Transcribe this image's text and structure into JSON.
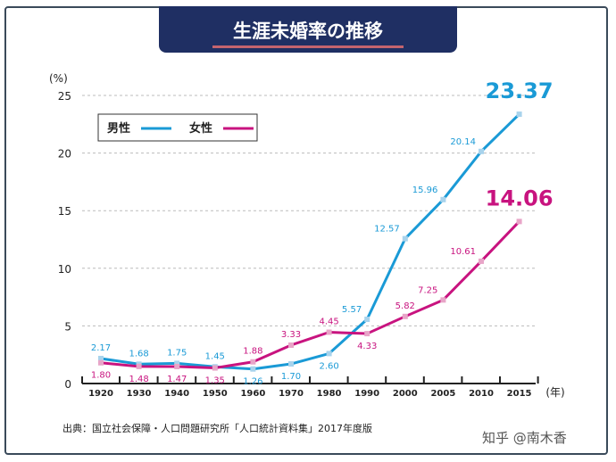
{
  "title": "生涯未婚率の推移",
  "source": "出典：国立社会保障・人口問題研究所「人口統計資料集」2017年度版",
  "watermark": "知乎 @南木香",
  "chart_data": {
    "type": "line",
    "title": "生涯未婚率の推移",
    "ylabel": "(%)",
    "xlabel": "(年)",
    "ylim": [
      0,
      25
    ],
    "yticks": [
      0,
      5,
      10,
      15,
      20,
      25
    ],
    "grid": true,
    "legend_position": "top-left",
    "categories": [
      "1920",
      "1930",
      "1940",
      "1950",
      "1960",
      "1970",
      "1980",
      "1990",
      "2000",
      "2005",
      "2010",
      "2015"
    ],
    "series": [
      {
        "name": "男性",
        "color": "#1a9ad6",
        "values": [
          2.17,
          1.68,
          1.75,
          1.45,
          1.26,
          1.7,
          2.6,
          5.57,
          12.57,
          15.96,
          20.14,
          23.37
        ]
      },
      {
        "name": "女性",
        "color": "#c8137f",
        "values": [
          1.8,
          1.48,
          1.47,
          1.35,
          1.88,
          3.33,
          4.45,
          4.33,
          5.82,
          7.25,
          10.61,
          14.06
        ]
      }
    ]
  }
}
